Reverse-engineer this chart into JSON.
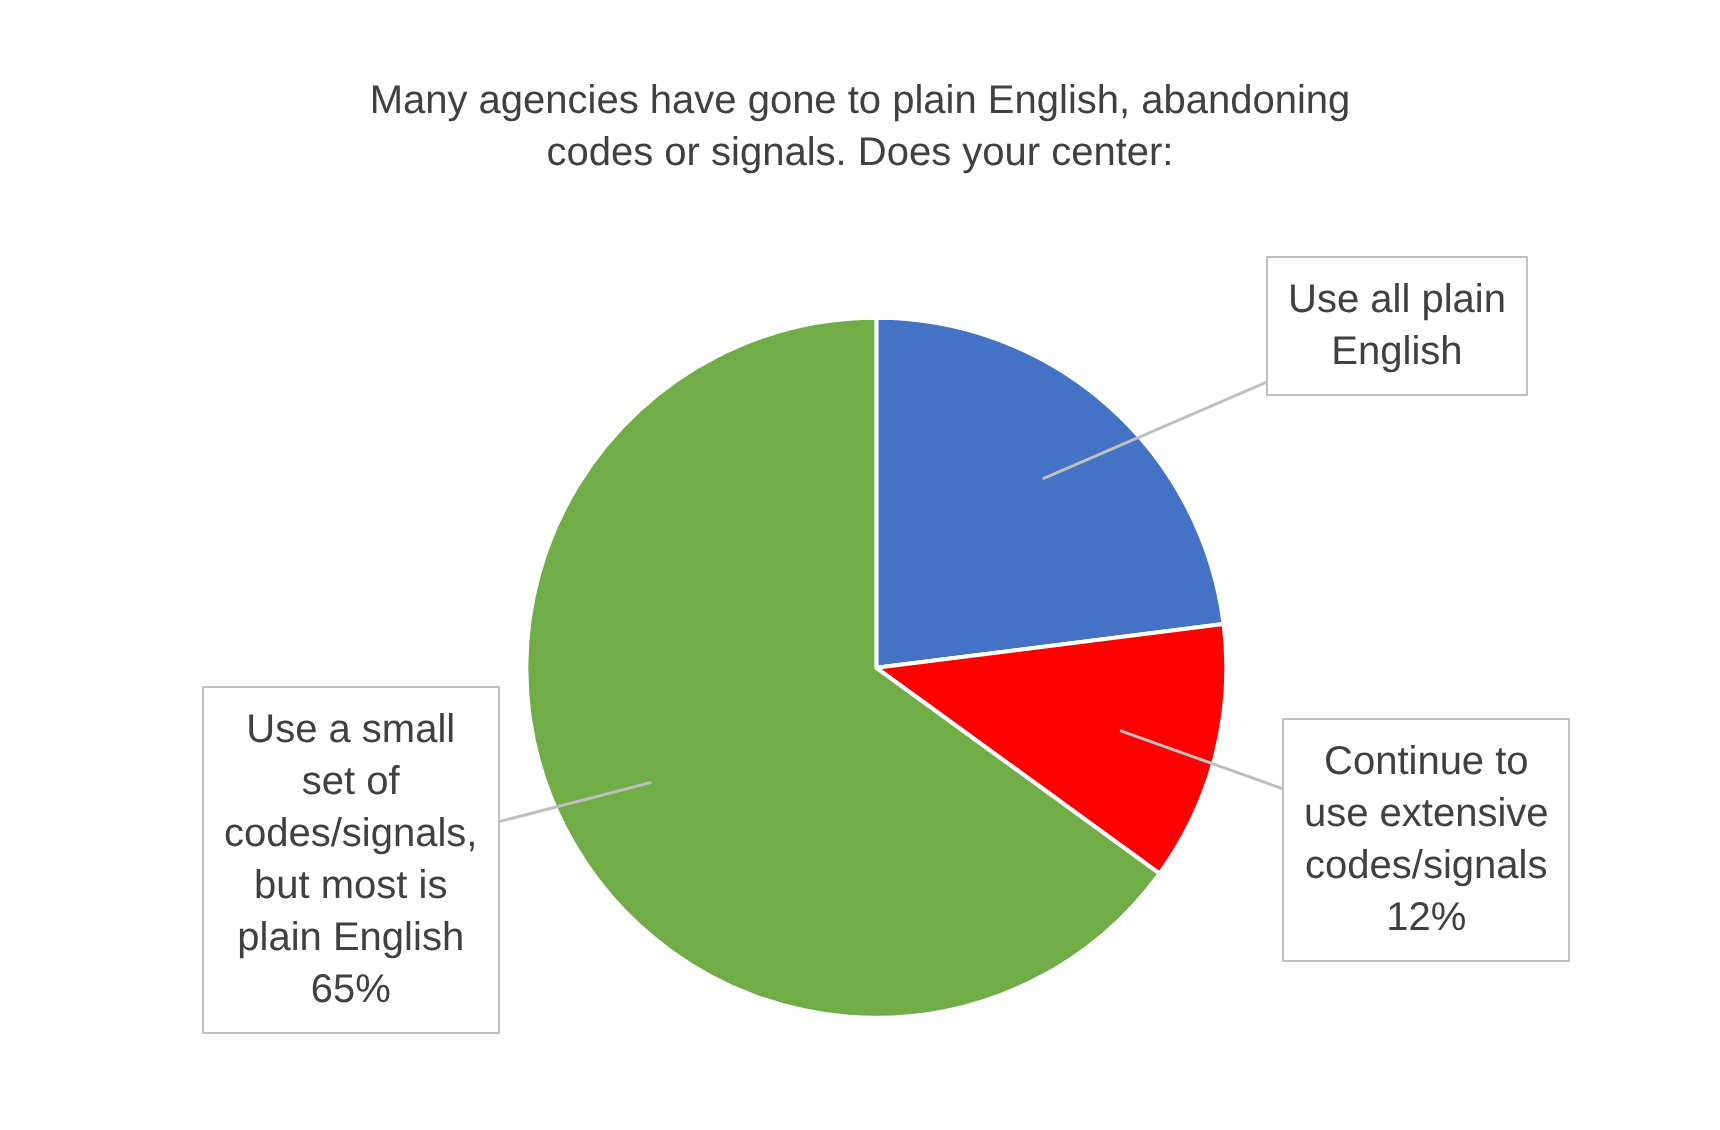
{
  "chart_data": {
    "type": "pie",
    "title": "Many agencies have gone to plain English, abandoning codes or signals. Does your center:",
    "categories": [
      "Use all plain English",
      "Continue to use extensive codes/signals",
      "Use a small set of codes/signals, but most is plain English"
    ],
    "values": [
      23,
      12,
      65
    ],
    "colors": [
      "#4472c4",
      "#ff0000",
      "#70ad47"
    ],
    "value_labels": [
      null,
      "12%",
      "65%"
    ],
    "legend": false
  }
}
